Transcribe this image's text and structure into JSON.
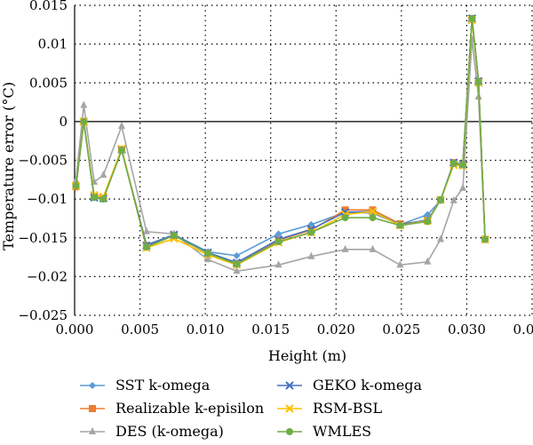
{
  "chart_data": {
    "type": "line",
    "title": "",
    "xlabel": "Height (m)",
    "ylabel": "Temperature error (°C)",
    "xlim": [
      0,
      0.035
    ],
    "ylim": [
      -0.025,
      0.015
    ],
    "x_ticks": [
      "0.000",
      "0.005",
      "0.010",
      "0.015",
      "0.020",
      "0.025",
      "0.030",
      "0.035"
    ],
    "y_ticks": [
      "0.015",
      "0.01",
      "0.005",
      "0",
      "−0.005",
      "−0.01",
      "−0.015",
      "−0.02",
      "−0.025"
    ],
    "x_tick_values": [
      0,
      0.005,
      0.01,
      0.015,
      0.02,
      0.025,
      0.03,
      0.035
    ],
    "y_tick_values": [
      0.015,
      0.01,
      0.005,
      0,
      -0.005,
      -0.01,
      -0.015,
      -0.02,
      -0.025
    ],
    "grid": "dotted",
    "legend_position": "bottom",
    "x": [
      0.0001,
      0.0007,
      0.0015,
      0.0022,
      0.0036,
      0.0055,
      0.0076,
      0.0102,
      0.0124,
      0.0156,
      0.0181,
      0.0207,
      0.0228,
      0.0249,
      0.027,
      0.028,
      0.029,
      0.0297,
      0.0304,
      0.0309,
      0.0314
    ],
    "series": [
      {
        "name": "SST k-omega",
        "color": "#5b9bd5",
        "marker": "diamond",
        "values": [
          -0.0085,
          0.0,
          -0.0098,
          -0.0099,
          -0.0037,
          -0.0159,
          -0.0146,
          -0.0168,
          -0.0173,
          -0.0145,
          -0.0133,
          -0.0117,
          -0.0118,
          -0.0133,
          -0.012,
          -0.0102,
          -0.0053,
          -0.0056,
          0.0133,
          0.0052,
          -0.0152
        ]
      },
      {
        "name": "Realizable k-episilon",
        "color": "#ed7d31",
        "marker": "square",
        "values": [
          -0.0084,
          0.0,
          -0.0097,
          -0.0099,
          -0.0036,
          -0.016,
          -0.0147,
          -0.017,
          -0.0183,
          -0.0153,
          -0.014,
          -0.0114,
          -0.0114,
          -0.0132,
          -0.0128,
          -0.0101,
          -0.0053,
          -0.0055,
          0.0133,
          0.0052,
          -0.0152
        ]
      },
      {
        "name": "DES (k-omega)",
        "color": "#a5a5a5",
        "marker": "triangle",
        "values": [
          -0.0076,
          0.0021,
          -0.0078,
          -0.0069,
          -0.0006,
          -0.0142,
          -0.0145,
          -0.0178,
          -0.0193,
          -0.0185,
          -0.0174,
          -0.0165,
          -0.0165,
          -0.0185,
          -0.0181,
          -0.0152,
          -0.0102,
          -0.0086,
          0.0106,
          0.0032,
          -0.0152
        ]
      },
      {
        "name": "GEKO k-omega",
        "color": "#4472c4",
        "marker": "x",
        "values": [
          -0.0083,
          0.0,
          -0.0098,
          -0.0099,
          -0.0036,
          -0.016,
          -0.0146,
          -0.0169,
          -0.0182,
          -0.0152,
          -0.0139,
          -0.0117,
          -0.0116,
          -0.0133,
          -0.0127,
          -0.0101,
          -0.0053,
          -0.0055,
          0.0133,
          0.0052,
          -0.0152
        ]
      },
      {
        "name": "RSM-BSL",
        "color": "#ffc000",
        "marker": "x",
        "values": [
          -0.0083,
          0.0,
          -0.0095,
          -0.0097,
          -0.0035,
          -0.0163,
          -0.0151,
          -0.0172,
          -0.0185,
          -0.0156,
          -0.0143,
          -0.012,
          -0.0116,
          -0.0134,
          -0.0128,
          -0.0101,
          -0.0056,
          -0.0057,
          0.0131,
          0.005,
          -0.0152
        ]
      },
      {
        "name": "WMLES",
        "color": "#70ad47",
        "marker": "circle",
        "values": [
          -0.0083,
          0.0,
          -0.0098,
          -0.01,
          -0.0037,
          -0.0162,
          -0.0147,
          -0.017,
          -0.0184,
          -0.0155,
          -0.0143,
          -0.0124,
          -0.0124,
          -0.0134,
          -0.0129,
          -0.0101,
          -0.0054,
          -0.0056,
          0.0133,
          0.0051,
          -0.0152
        ]
      }
    ]
  }
}
